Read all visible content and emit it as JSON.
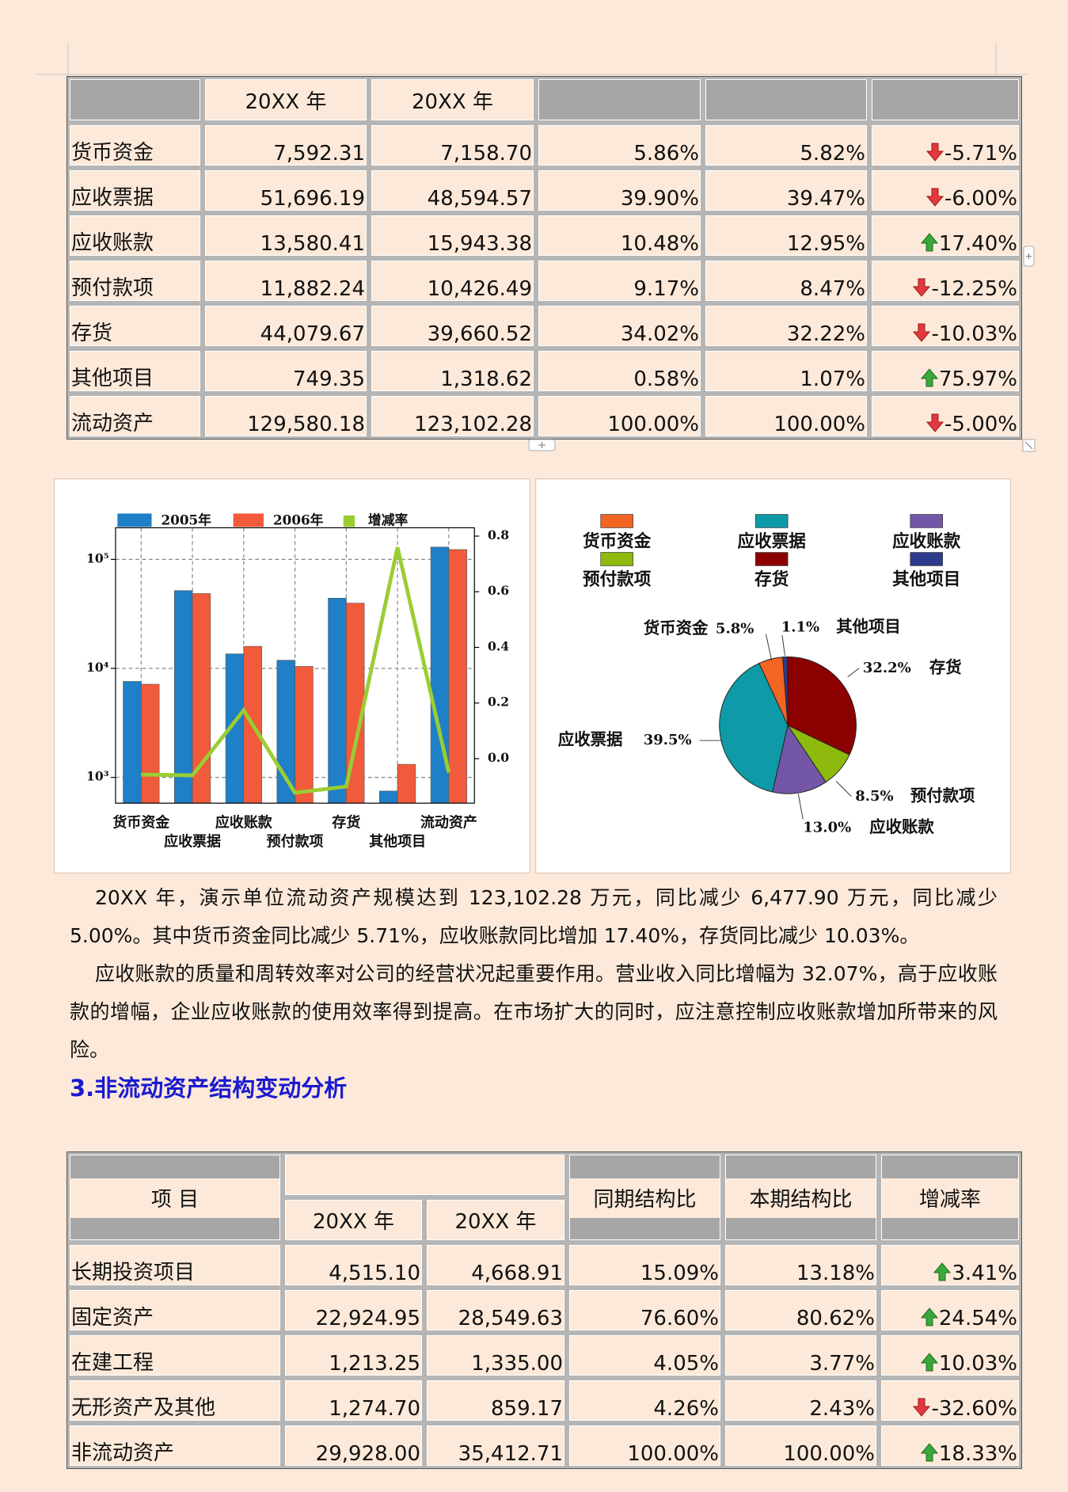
{
  "table1": {
    "header": [
      "20XX 年",
      "20XX 年"
    ],
    "rows": [
      [
        "货币资金",
        "7,592.31",
        "7,158.70",
        "5.86%",
        "5.82%",
        "-5.71%"
      ],
      [
        "应收票据",
        "51,696.19",
        "48,594.57",
        "39.90%",
        "39.47%",
        "-6.00%"
      ],
      [
        "应收账款",
        "13,580.41",
        "15,943.38",
        "10.48%",
        "12.95%",
        "17.40%"
      ],
      [
        "预付款项",
        "11,882.24",
        "10,426.49",
        "9.17%",
        "8.47%",
        "-12.25%"
      ],
      [
        "存货",
        "44,079.67",
        "39,660.52",
        "34.02%",
        "32.22%",
        "-10.03%"
      ],
      [
        "其他项目",
        "749.35",
        "1,318.62",
        "0.58%",
        "1.07%",
        "75.97%"
      ],
      [
        "流动资产",
        "129,580.18",
        "123,102.28",
        "100.00%",
        "100.00%",
        "-5.00%"
      ]
    ]
  },
  "chart_data": [
    {
      "type": "bar",
      "categories": [
        "货币资金",
        "应收票据",
        "应收账款",
        "预付款项",
        "存货",
        "其他项目",
        "流动资产"
      ],
      "series": [
        {
          "name": "2005年",
          "color": "#1f7fc7",
          "values": [
            7592.31,
            51696.19,
            13580.41,
            11882.24,
            44079.67,
            749.35,
            129580.18
          ]
        },
        {
          "name": "2006年",
          "color": "#f15a3a",
          "values": [
            7158.7,
            48594.57,
            15943.38,
            10426.49,
            39660.52,
            1318.62,
            123102.28
          ]
        },
        {
          "name": "增减率",
          "color": "#9acd32",
          "type": "line",
          "axis": "y2",
          "values": [
            -0.0571,
            -0.06,
            0.174,
            -0.1225,
            -0.1003,
            0.7597,
            -0.05
          ]
        }
      ],
      "log_scale": true,
      "ylim": [
        580,
        195000
      ],
      "yticks": [
        {
          "value": 1000,
          "label": "10³"
        },
        {
          "value": 10000,
          "label": "10⁴"
        },
        {
          "value": 100000,
          "label": "10⁵"
        }
      ],
      "y2lim": [
        -0.16,
        0.83
      ],
      "y2ticks": [
        {
          "value": 0,
          "label": "0.0"
        },
        0.2,
        0.4,
        0.6,
        0.8
      ],
      "grid": true
    },
    {
      "type": "pie",
      "categories": [
        "货币资金",
        "应收票据",
        "应收账款",
        "预付款项",
        "存货",
        "其他项目"
      ],
      "colors": [
        "#f26522",
        "#0e9aa7",
        "#7456a6",
        "#8dba0c",
        "#8b0000",
        "#2e3a8c"
      ],
      "values": [
        5.8,
        39.5,
        13.0,
        8.5,
        32.2,
        1.1
      ],
      "value_labels": [
        "5.8%",
        "39.5%",
        "13.0%",
        "8.5%",
        "32.2%",
        "1.1%"
      ]
    }
  ],
  "paragraphs": [
    "20XX 年，演示单位流动资产规模达到 123,102.28 万元，同比减少 6,477.90 万元，同比减少 5.00%。其中货币资金同比减少 5.71%，应收账款同比增加 17.40%，存货同比减少 10.03%。",
    "应收账款的质量和周转效率对公司的经营状况起重要作用。营业收入同比增幅为 32.07%，高于应收账款的增幅，企业应收账款的使用效率得到提高。在市场扩大的同时，应注意控制应收账款增加所带来的风险。"
  ],
  "heading": "3.非流动资产结构变动分析",
  "table2": {
    "header": {
      "item": "项 目",
      "years": [
        "20XX 年",
        "20XX 年"
      ],
      "columns": [
        "同期结构比",
        "本期结构比",
        "增减率"
      ]
    },
    "rows": [
      [
        "长期投资项目",
        "4,515.10",
        "4,668.91",
        "15.09%",
        "13.18%",
        "3.41%"
      ],
      [
        "固定资产",
        "22,924.95",
        "28,549.63",
        "76.60%",
        "80.62%",
        "24.54%"
      ],
      [
        "在建工程",
        "1,213.25",
        "1,335.00",
        "4.05%",
        "3.77%",
        "10.03%"
      ],
      [
        "无形资产及其他",
        "1,274.70",
        "859.17",
        "4.26%",
        "2.43%",
        "-32.60%"
      ],
      [
        "非流动资产",
        "29,928.00",
        "35,412.71",
        "100.00%",
        "100.00%",
        "18.33%"
      ]
    ]
  }
}
